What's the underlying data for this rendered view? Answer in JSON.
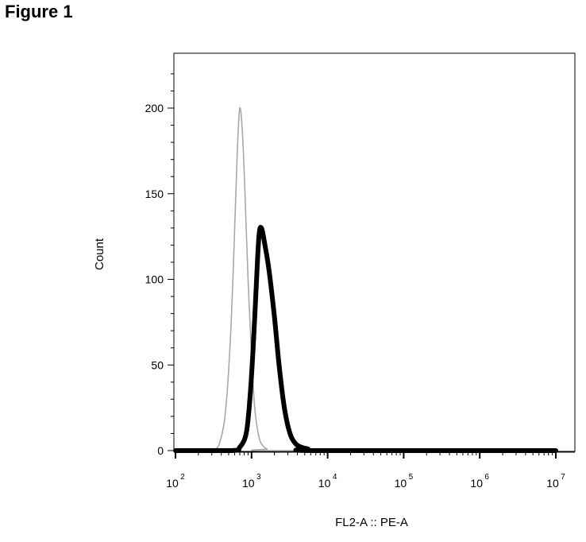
{
  "figure": {
    "label": "Figure 1"
  },
  "chart_data": {
    "type": "line",
    "title": "",
    "xlabel": "FL2-A :: PE-A",
    "ylabel": "Count",
    "x_scale": "log",
    "xlim": [
      100,
      10000000
    ],
    "ylim": [
      0,
      230
    ],
    "x_ticks": [
      {
        "base": "10",
        "exp": "2",
        "value": 100
      },
      {
        "base": "10",
        "exp": "3",
        "value": 1000
      },
      {
        "base": "10",
        "exp": "4",
        "value": 10000
      },
      {
        "base": "10",
        "exp": "5",
        "value": 100000
      },
      {
        "base": "10",
        "exp": "6",
        "value": 1000000
      },
      {
        "base": "10",
        "exp": "7",
        "value": 10000000
      }
    ],
    "y_ticks": [
      0,
      50,
      100,
      150,
      200
    ],
    "grid": false,
    "legend": "none",
    "series": [
      {
        "color": "#a8a8a8",
        "line_weight": "thin",
        "x": [
          100,
          300,
          400,
          470,
          540,
          600,
          650,
          700,
          760,
          820,
          900,
          1000,
          1100,
          1250,
          1400,
          1600,
          2000,
          10000000
        ],
        "y": [
          0,
          0,
          8,
          30,
          75,
          130,
          175,
          200,
          185,
          150,
          100,
          55,
          25,
          8,
          3,
          1,
          0,
          0
        ]
      },
      {
        "color": "#000000",
        "line_weight": "thick",
        "x": [
          100,
          550,
          700,
          850,
          950,
          1050,
          1150,
          1250,
          1350,
          1500,
          1700,
          2000,
          2300,
          2700,
          3200,
          3800,
          4500,
          5500,
          7000,
          10000000
        ],
        "y": [
          0,
          0,
          2,
          10,
          30,
          60,
          95,
          125,
          130,
          120,
          105,
          78,
          50,
          25,
          10,
          4,
          2,
          1,
          0,
          0
        ]
      }
    ]
  }
}
